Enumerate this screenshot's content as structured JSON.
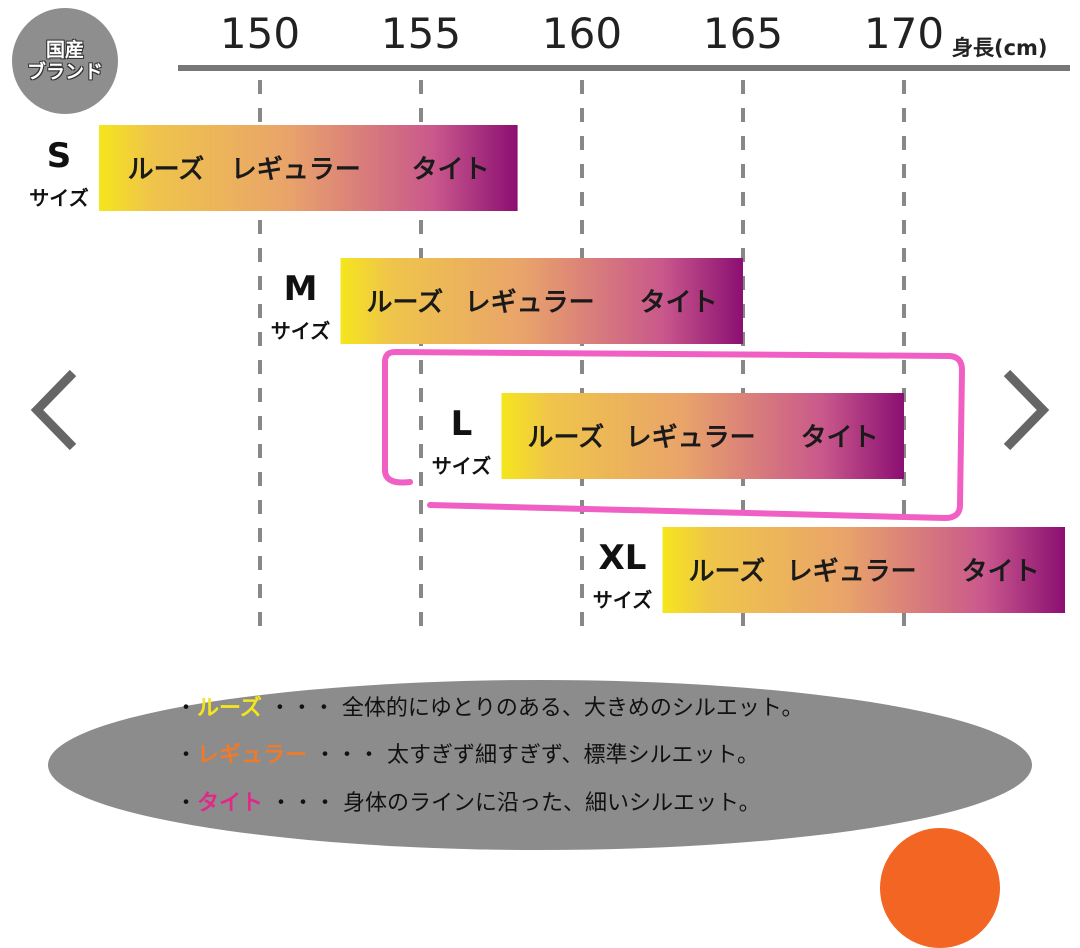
{
  "badge": {
    "line1": "国産",
    "line2": "ブランド"
  },
  "navigation": {
    "prev_icon": "chevron-left-icon",
    "next_icon": "chevron-right-icon"
  },
  "chart_data": {
    "type": "range-bar",
    "xlabel": "身長(cm)",
    "xticks": [
      "150",
      "155",
      "160",
      "165",
      "170"
    ],
    "xlim": [
      145,
      175
    ],
    "grid": true,
    "segment_labels": [
      "ルーズ",
      "レギュラー",
      "タイト"
    ],
    "colors": {
      "loose": "#f5e61c",
      "regular": "#e9a46a",
      "tight": "#8b0f72",
      "highlight": "#f05fc4"
    },
    "series": [
      {
        "name": "S",
        "suffix": "サイズ",
        "range": [
          145,
          158
        ]
      },
      {
        "name": "M",
        "suffix": "サイズ",
        "range": [
          152.5,
          165
        ]
      },
      {
        "name": "L",
        "suffix": "サイズ",
        "range": [
          157.5,
          170
        ],
        "highlighted": true
      },
      {
        "name": "XL",
        "suffix": "サイズ",
        "range": [
          162.5,
          175
        ]
      }
    ]
  },
  "legend": [
    {
      "term": "ルーズ",
      "color": "#f5e61c",
      "desc": "・・・ 全体的にゆとりのある、大きめのシルエット。"
    },
    {
      "term": "レギュラー",
      "color": "#f07a2a",
      "desc": "・・・ 太すぎず細すぎず、標準シルエット。"
    },
    {
      "term": "タイト",
      "color": "#e2288a",
      "desc": "・・・ 身体のラインに沿った、細いシルエット。"
    }
  ]
}
